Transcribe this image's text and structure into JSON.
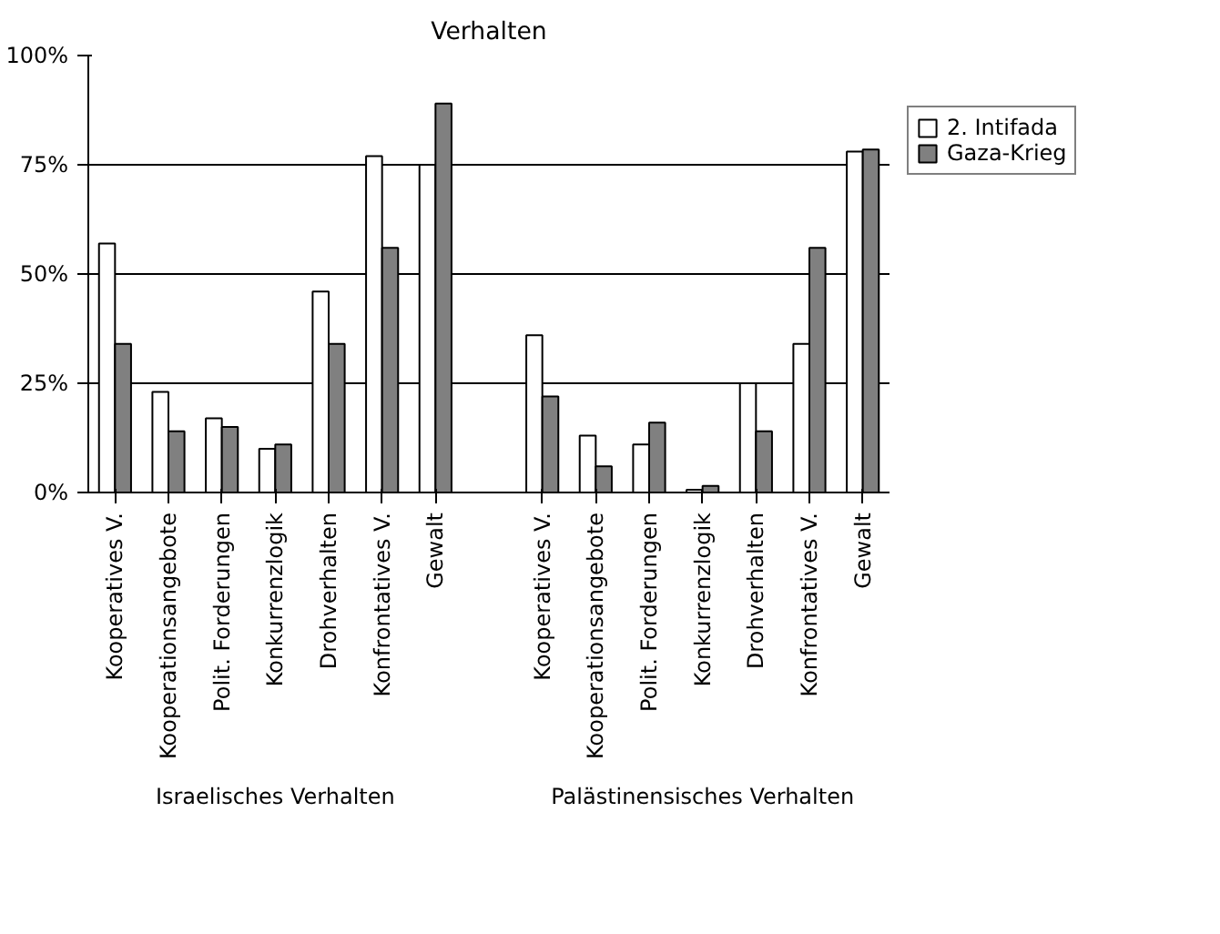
{
  "chart_data": {
    "type": "bar",
    "title": "Verhalten",
    "categories": [
      "Kooperatives V.",
      "Kooperationsangebote",
      "Polit. Forderungen",
      "Konkurrenzlogik",
      "Drohverhalten",
      "Konfrontatives V.",
      "Gewalt",
      null,
      "Kooperatives V.",
      "Kooperationsangebote",
      "Polit. Forderungen",
      "Konkurrenzlogik",
      "Drohverhalten",
      "Konfrontatives V.",
      "Gewalt"
    ],
    "series": [
      {
        "name": "2. Intifada",
        "color": "#ffffff",
        "values": [
          57,
          23,
          17,
          10,
          46,
          77,
          75,
          null,
          36,
          13,
          11,
          0.6,
          25,
          34,
          78
        ]
      },
      {
        "name": "Gaza-Krieg",
        "color": "#808080",
        "values": [
          34,
          14,
          15,
          11,
          34,
          56,
          89,
          null,
          22,
          6,
          16,
          1.5,
          14,
          56,
          78.5
        ]
      }
    ],
    "annotations": [
      "Israelisches Verhalten",
      "Palästinensisches Verhalten"
    ],
    "ylim": [
      0,
      100
    ],
    "yticks": [
      {
        "value": 0,
        "label": "0%"
      },
      {
        "value": 25,
        "label": "25%"
      },
      {
        "value": 50,
        "label": "50%"
      },
      {
        "value": 75,
        "label": "75%"
      },
      {
        "value": 100,
        "label": "100%"
      }
    ],
    "grid": "y",
    "legend": "right"
  }
}
